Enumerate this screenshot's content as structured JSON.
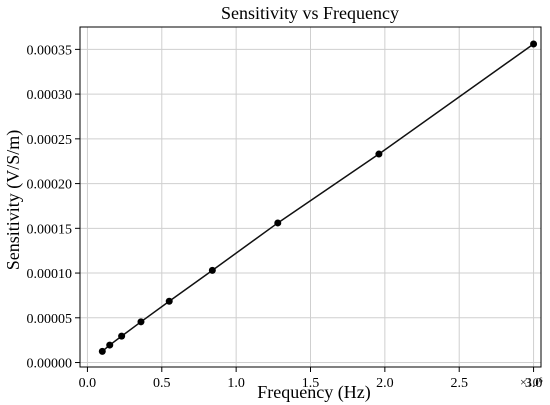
{
  "chart_data": {
    "type": "line",
    "title": "Sensitivity vs Frequency",
    "xlabel": "Frequency (Hz)",
    "ylabel": "Sensitivity (V/S/m)",
    "x_offset_label": "×10⁶",
    "xlim": [
      -0.05,
      3.05
    ],
    "ylim": [
      -5e-06,
      0.000375
    ],
    "x_ticks": [
      0.0,
      0.5,
      1.0,
      1.5,
      2.0,
      2.5,
      3.0
    ],
    "x_tick_labels": [
      "0.0",
      "0.5",
      "1.0",
      "1.5",
      "2.0",
      "2.5",
      "3.0"
    ],
    "y_ticks": [
      0.0,
      5e-05,
      0.0001,
      0.00015,
      0.0002,
      0.00025,
      0.0003,
      0.00035
    ],
    "y_tick_labels": [
      "0.00000",
      "0.00005",
      "0.00010",
      "0.00015",
      "0.00020",
      "0.00025",
      "0.00030",
      "0.00035"
    ],
    "grid": true,
    "series": [
      {
        "x": [
          0.1,
          0.15,
          0.23,
          0.36,
          0.55,
          0.84,
          1.28,
          1.96,
          3.0
        ],
        "y": [
          1.25e-05,
          1.95e-05,
          2.95e-05,
          4.55e-05,
          6.85e-05,
          0.000103,
          0.000156,
          0.000233,
          0.000356
        ],
        "color": "#111111",
        "marker": "circle"
      }
    ]
  }
}
